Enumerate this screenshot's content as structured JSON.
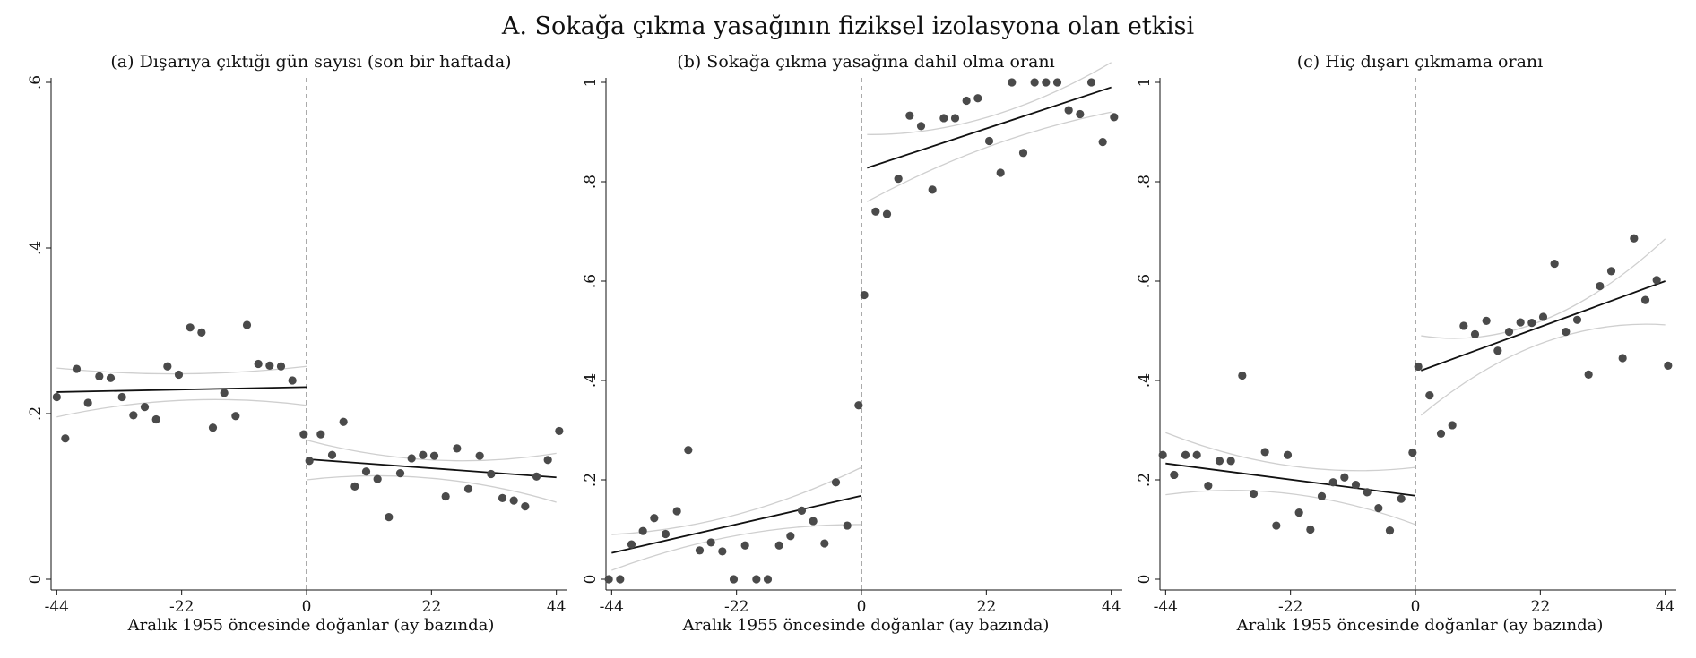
{
  "figure_title": "A. Sokağa çıkma yasağının fiziksel izolasyona olan etkisi",
  "chart_data": [
    {
      "type": "scatter",
      "title": "(a) Dışarıya çıktığı gün sayısı (son bir haftada)",
      "xlabel": "Aralık 1955 öncesinde doğanlar (ay bazında)",
      "ylabel": "",
      "xlim": [
        -45,
        45
      ],
      "ylim": [
        0,
        0.6
      ],
      "xticks": [
        -44,
        -22,
        0,
        22,
        44
      ],
      "xtick_labels": [
        "-44",
        "-22",
        "0",
        "22",
        "44"
      ],
      "yticks": [
        0,
        0.2,
        0.4,
        0.6
      ],
      "ytick_labels": [
        "0",
        ".2",
        ".4",
        ".6"
      ],
      "cutoff": 0,
      "points": [
        [
          -44,
          0.22
        ],
        [
          -42.5,
          0.17
        ],
        [
          -40.5,
          0.254
        ],
        [
          -38.5,
          0.213
        ],
        [
          -36.5,
          0.245
        ],
        [
          -34.5,
          0.243
        ],
        [
          -32.5,
          0.22
        ],
        [
          -30.5,
          0.198
        ],
        [
          -28.5,
          0.208
        ],
        [
          -26.5,
          0.193
        ],
        [
          -24.5,
          0.257
        ],
        [
          -22.5,
          0.247
        ],
        [
          -20.5,
          0.304
        ],
        [
          -18.5,
          0.298
        ],
        [
          -16.5,
          0.183
        ],
        [
          -14.5,
          0.225
        ],
        [
          -12.5,
          0.197
        ],
        [
          -10.5,
          0.307
        ],
        [
          -8.5,
          0.26
        ],
        [
          -6.5,
          0.258
        ],
        [
          -4.5,
          0.257
        ],
        [
          -2.5,
          0.24
        ],
        [
          -0.5,
          0.175
        ],
        [
          0.5,
          0.143
        ],
        [
          2.5,
          0.175
        ],
        [
          4.5,
          0.15
        ],
        [
          6.5,
          0.19
        ],
        [
          8.5,
          0.112
        ],
        [
          10.5,
          0.13
        ],
        [
          12.5,
          0.121
        ],
        [
          14.5,
          0.075
        ],
        [
          16.5,
          0.128
        ],
        [
          18.5,
          0.146
        ],
        [
          20.5,
          0.15
        ],
        [
          22.5,
          0.149
        ],
        [
          24.5,
          0.1
        ],
        [
          26.5,
          0.158
        ],
        [
          28.5,
          0.109
        ],
        [
          30.5,
          0.149
        ],
        [
          32.5,
          0.127
        ],
        [
          34.5,
          0.098
        ],
        [
          36.5,
          0.095
        ],
        [
          38.5,
          0.088
        ],
        [
          40.5,
          0.124
        ],
        [
          42.5,
          0.144
        ],
        [
          44.5,
          0.179
        ]
      ],
      "fit_left": [
        [
          -44,
          0.226
        ],
        [
          0,
          0.232
        ]
      ],
      "fit_right": [
        [
          0,
          0.145
        ],
        [
          44,
          0.123
        ]
      ],
      "ci_left_upper": [
        [
          -44,
          0.255
        ],
        [
          -22,
          0.248
        ],
        [
          0,
          0.257
        ]
      ],
      "ci_left_lower": [
        [
          -44,
          0.196
        ],
        [
          -22,
          0.216
        ],
        [
          0,
          0.21
        ]
      ],
      "ci_right_upper": [
        [
          0,
          0.168
        ],
        [
          22,
          0.144
        ],
        [
          44,
          0.152
        ]
      ],
      "ci_right_lower": [
        [
          0,
          0.12
        ],
        [
          22,
          0.122
        ],
        [
          44,
          0.093
        ]
      ]
    },
    {
      "type": "scatter",
      "title": "(b) Sokağa çıkma yasağına dahil olma oranı",
      "xlabel": "Aralık 1955 öncesinde doğanlar (ay bazında)",
      "ylabel": "",
      "xlim": [
        -45,
        45
      ],
      "ylim": [
        0,
        1
      ],
      "xticks": [
        -44,
        -22,
        0,
        22,
        44
      ],
      "xtick_labels": [
        "-44",
        "-22",
        "0",
        "22",
        "44"
      ],
      "yticks": [
        0,
        0.2,
        0.4,
        0.6,
        0.8,
        1
      ],
      "ytick_labels": [
        "0",
        ".2",
        ".4",
        ".6",
        ".8",
        "1"
      ],
      "cutoff": 0,
      "points": [
        [
          -44.5,
          0.0
        ],
        [
          -42.5,
          0.0
        ],
        [
          -40.5,
          0.07
        ],
        [
          -38.5,
          0.097
        ],
        [
          -36.5,
          0.123
        ],
        [
          -34.5,
          0.091
        ],
        [
          -32.5,
          0.137
        ],
        [
          -30.5,
          0.26
        ],
        [
          -28.5,
          0.058
        ],
        [
          -26.5,
          0.074
        ],
        [
          -24.5,
          0.056
        ],
        [
          -22.5,
          0.0
        ],
        [
          -20.5,
          0.068
        ],
        [
          -18.5,
          0.0
        ],
        [
          -16.5,
          0.0
        ],
        [
          -14.5,
          0.068
        ],
        [
          -12.5,
          0.087
        ],
        [
          -10.5,
          0.138
        ],
        [
          -8.5,
          0.117
        ],
        [
          -6.5,
          0.072
        ],
        [
          -4.5,
          0.195
        ],
        [
          -2.5,
          0.108
        ],
        [
          -0.5,
          0.35
        ],
        [
          0.5,
          0.572
        ],
        [
          2.5,
          0.74
        ],
        [
          4.5,
          0.735
        ],
        [
          6.5,
          0.806
        ],
        [
          8.5,
          0.933
        ],
        [
          10.5,
          0.912
        ],
        [
          12.5,
          0.784
        ],
        [
          14.5,
          0.928
        ],
        [
          16.5,
          0.928
        ],
        [
          18.5,
          0.963
        ],
        [
          20.5,
          0.968
        ],
        [
          22.5,
          0.882
        ],
        [
          24.5,
          0.818
        ],
        [
          26.5,
          1.0
        ],
        [
          28.5,
          0.858
        ],
        [
          30.5,
          1.0
        ],
        [
          32.5,
          1.0
        ],
        [
          34.5,
          1.0
        ],
        [
          36.5,
          0.944
        ],
        [
          38.5,
          0.936
        ],
        [
          40.5,
          1.0
        ],
        [
          42.5,
          0.88
        ],
        [
          44.5,
          0.93
        ]
      ],
      "fit_left": [
        [
          -44,
          0.053
        ],
        [
          0,
          0.168
        ]
      ],
      "fit_right": [
        [
          1,
          0.828
        ],
        [
          44,
          0.99
        ]
      ],
      "ci_left_upper": [
        [
          -44,
          0.09
        ],
        [
          -22,
          0.13
        ],
        [
          0,
          0.225
        ]
      ],
      "ci_left_lower": [
        [
          -44,
          0.018
        ],
        [
          -22,
          0.088
        ],
        [
          0,
          0.11
        ]
      ],
      "ci_right_upper": [
        [
          1,
          0.895
        ],
        [
          22,
          0.93
        ],
        [
          44,
          1.04
        ]
      ],
      "ci_right_lower": [
        [
          1,
          0.76
        ],
        [
          22,
          0.87
        ],
        [
          44,
          0.94
        ]
      ]
    },
    {
      "type": "scatter",
      "title": "(c) Hiç dışarı çıkmama oranı",
      "xlabel": "Aralık 1955 öncesinde doğanlar (ay bazında)",
      "ylabel": "",
      "xlim": [
        -45,
        45
      ],
      "ylim": [
        0,
        1
      ],
      "xticks": [
        -44,
        -22,
        0,
        22,
        44
      ],
      "xtick_labels": [
        "-44",
        "-22",
        "0",
        "22",
        "44"
      ],
      "yticks": [
        0,
        0.2,
        0.4,
        0.6,
        0.8,
        1
      ],
      "ytick_labels": [
        "0",
        ".2",
        ".4",
        ".6",
        ".8",
        "1"
      ],
      "cutoff": 0,
      "points": [
        [
          -44.5,
          0.25
        ],
        [
          -42.5,
          0.21
        ],
        [
          -40.5,
          0.25
        ],
        [
          -38.5,
          0.25
        ],
        [
          -36.5,
          0.188
        ],
        [
          -34.5,
          0.238
        ],
        [
          -32.5,
          0.238
        ],
        [
          -30.5,
          0.41
        ],
        [
          -28.5,
          0.172
        ],
        [
          -26.5,
          0.256
        ],
        [
          -24.5,
          0.108
        ],
        [
          -22.5,
          0.25
        ],
        [
          -20.5,
          0.134
        ],
        [
          -18.5,
          0.1
        ],
        [
          -16.5,
          0.167
        ],
        [
          -14.5,
          0.195
        ],
        [
          -12.5,
          0.205
        ],
        [
          -10.5,
          0.19
        ],
        [
          -8.5,
          0.175
        ],
        [
          -6.5,
          0.143
        ],
        [
          -4.5,
          0.098
        ],
        [
          -2.5,
          0.162
        ],
        [
          -0.5,
          0.255
        ],
        [
          0.5,
          0.428
        ],
        [
          2.5,
          0.37
        ],
        [
          4.5,
          0.293
        ],
        [
          6.5,
          0.31
        ],
        [
          8.5,
          0.51
        ],
        [
          10.5,
          0.493
        ],
        [
          12.5,
          0.52
        ],
        [
          14.5,
          0.46
        ],
        [
          16.5,
          0.498
        ],
        [
          18.5,
          0.517
        ],
        [
          20.5,
          0.516
        ],
        [
          22.5,
          0.528
        ],
        [
          24.5,
          0.635
        ],
        [
          26.5,
          0.498
        ],
        [
          28.5,
          0.522
        ],
        [
          30.5,
          0.412
        ],
        [
          32.5,
          0.59
        ],
        [
          34.5,
          0.62
        ],
        [
          36.5,
          0.445
        ],
        [
          38.5,
          0.686
        ],
        [
          40.5,
          0.562
        ],
        [
          42.5,
          0.602
        ],
        [
          44.5,
          0.43
        ]
      ],
      "fit_left": [
        [
          -44,
          0.233
        ],
        [
          0,
          0.168
        ]
      ],
      "fit_right": [
        [
          1,
          0.42
        ],
        [
          44,
          0.6
        ]
      ],
      "ci_left_upper": [
        [
          -44,
          0.295
        ],
        [
          -22,
          0.228
        ],
        [
          0,
          0.225
        ]
      ],
      "ci_left_lower": [
        [
          -44,
          0.17
        ],
        [
          -22,
          0.172
        ],
        [
          0,
          0.11
        ]
      ],
      "ci_right_upper": [
        [
          1,
          0.49
        ],
        [
          22,
          0.52
        ],
        [
          44,
          0.685
        ]
      ],
      "ci_right_lower": [
        [
          1,
          0.33
        ],
        [
          22,
          0.475
        ],
        [
          44,
          0.512
        ]
      ]
    }
  ]
}
